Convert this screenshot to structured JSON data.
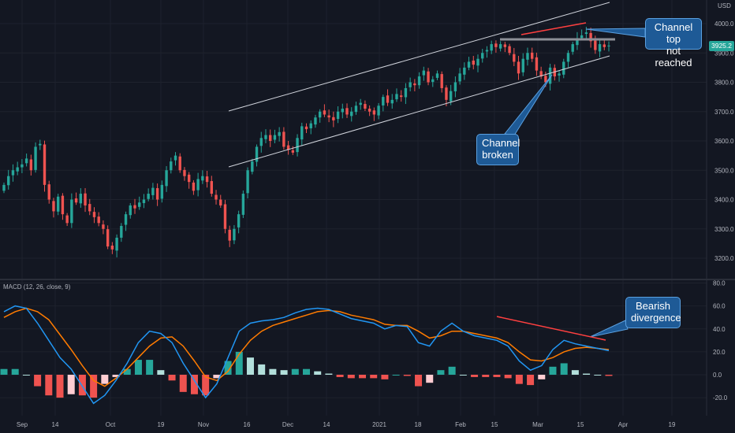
{
  "currency": "USD",
  "last_price": "3925.2",
  "annotations": {
    "channel_top": "Channel top\nnot reached",
    "channel_broken": "Channel\nbroken",
    "bearish": "Bearish\ndivergence"
  },
  "colors": {
    "up": "#26a69a",
    "down": "#ef5350",
    "macd": "#2196f3",
    "signal": "#ff7b00",
    "trend": "#ff4040",
    "channel": "#d1d4dc",
    "resistance": "#8c8f97"
  },
  "chart_data": [
    {
      "type": "candlestick",
      "title": "",
      "x_tick_labels": [
        "Sep",
        "14",
        "Oct",
        "19",
        "Nov",
        "16",
        "Dec",
        "14",
        "2021",
        "18",
        "Feb",
        "15",
        "Mar",
        "15",
        "Apr",
        "19"
      ],
      "y_tick_labels": [
        "3200.0",
        "3300.0",
        "3400.0",
        "3500.0",
        "3600.0",
        "3700.0",
        "3800.0",
        "3900.0",
        "4000.0"
      ],
      "ylim": [
        3170,
        4070
      ],
      "last_value": 3925.2,
      "closes": [
        3450,
        3480,
        3500,
        3510,
        3520,
        3540,
        3500,
        3580,
        3590,
        3450,
        3400,
        3360,
        3410,
        3350,
        3320,
        3400,
        3390,
        3420,
        3380,
        3360,
        3340,
        3320,
        3300,
        3240,
        3230,
        3270,
        3310,
        3350,
        3380,
        3370,
        3390,
        3400,
        3420,
        3440,
        3400,
        3450,
        3500,
        3530,
        3550,
        3500,
        3480,
        3460,
        3430,
        3470,
        3480,
        3460,
        3420,
        3400,
        3380,
        3300,
        3260,
        3300,
        3350,
        3420,
        3500,
        3530,
        3580,
        3610,
        3620,
        3600,
        3620,
        3630,
        3580,
        3570,
        3560,
        3610,
        3650,
        3640,
        3660,
        3680,
        3700,
        3690,
        3680,
        3670,
        3700,
        3710,
        3690,
        3700,
        3720,
        3730,
        3710,
        3700,
        3690,
        3720,
        3750,
        3730,
        3740,
        3760,
        3750,
        3780,
        3800,
        3790,
        3820,
        3840,
        3800,
        3810,
        3830,
        3780,
        3740,
        3770,
        3800,
        3830,
        3850,
        3870,
        3860,
        3880,
        3900,
        3910,
        3930,
        3920,
        3930,
        3920,
        3900,
        3870,
        3830,
        3880,
        3900,
        3880,
        3840,
        3820,
        3800,
        3850,
        3820,
        3830,
        3870,
        3900,
        3930,
        3950,
        3960,
        3970,
        3940,
        3910,
        3930,
        3920,
        3925.2
      ]
    },
    {
      "type": "line",
      "title": "MACD (12, 26, close, 9)",
      "x_tick_labels": [
        "Sep",
        "14",
        "Oct",
        "19",
        "Nov",
        "16",
        "Dec",
        "14",
        "2021",
        "18",
        "Feb",
        "15",
        "Mar",
        "15",
        "Apr",
        "19"
      ],
      "y_tick_labels": [
        "80.0",
        "60.0",
        "40.0",
        "20.0",
        "0.0",
        "-20.0"
      ],
      "ylim": [
        -35,
        80
      ],
      "series": [
        {
          "name": "MACD",
          "values": [
            55,
            60,
            58,
            45,
            30,
            15,
            5,
            -10,
            -25,
            -18,
            -5,
            10,
            28,
            38,
            36,
            28,
            10,
            -5,
            -20,
            -8,
            15,
            38,
            45,
            47,
            48,
            50,
            54,
            57,
            58,
            57,
            53,
            49,
            47,
            45,
            40,
            43,
            42,
            28,
            25,
            38,
            45,
            38,
            34,
            32,
            30,
            25,
            12,
            4,
            8,
            22,
            30,
            27,
            25,
            23,
            21
          ]
        },
        {
          "name": "Signal",
          "values": [
            50,
            55,
            58,
            55,
            48,
            35,
            22,
            8,
            -5,
            -10,
            -3,
            5,
            15,
            25,
            32,
            33,
            25,
            12,
            -2,
            -5,
            3,
            18,
            30,
            38,
            43,
            46,
            49,
            52,
            55,
            56,
            55,
            52,
            50,
            48,
            44,
            43,
            43,
            38,
            32,
            34,
            38,
            38,
            36,
            34,
            32,
            28,
            20,
            13,
            12,
            15,
            20,
            23,
            24,
            23,
            22
          ]
        },
        {
          "name": "Histogram",
          "values": [
            5,
            5,
            0,
            -10,
            -18,
            -20,
            -17,
            -18,
            -20,
            -8,
            -2,
            5,
            13,
            13,
            4,
            -5,
            -15,
            -17,
            -18,
            -3,
            12,
            20,
            15,
            9,
            5,
            4,
            5,
            5,
            3,
            1,
            -2,
            -3,
            -3,
            -3,
            -4,
            0,
            -1,
            -10,
            -7,
            4,
            7,
            0,
            -2,
            -2,
            -2,
            -3,
            -8,
            -9,
            -4,
            7,
            10,
            4,
            1,
            0,
            -1
          ]
        }
      ]
    }
  ]
}
